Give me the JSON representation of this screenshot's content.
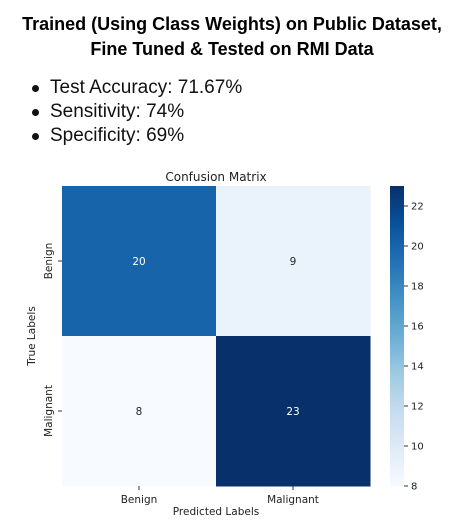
{
  "title": {
    "line1": "Trained (Using Class Weights) on Public Dataset,",
    "line2": "Fine Tuned & Tested on RMI Data"
  },
  "metrics": [
    "Test Accuracy: 71.67%",
    "Sensitivity: 74%",
    "Specificity: 69%"
  ],
  "chart_data": {
    "type": "heatmap",
    "title": "Confusion Matrix",
    "xlabel": "Predicted Labels",
    "ylabel": "True Labels",
    "x_categories": [
      "Benign",
      "Malignant"
    ],
    "y_categories": [
      "Benign",
      "Malignant"
    ],
    "values": [
      [
        20,
        9
      ],
      [
        8,
        23
      ]
    ],
    "colormap": "Blues",
    "colorbar": {
      "range": [
        8,
        23
      ],
      "ticks": [
        8,
        10,
        12,
        14,
        16,
        18,
        20,
        22
      ]
    },
    "colors": {
      "low": "#f7fbff",
      "high": "#08306b"
    }
  }
}
